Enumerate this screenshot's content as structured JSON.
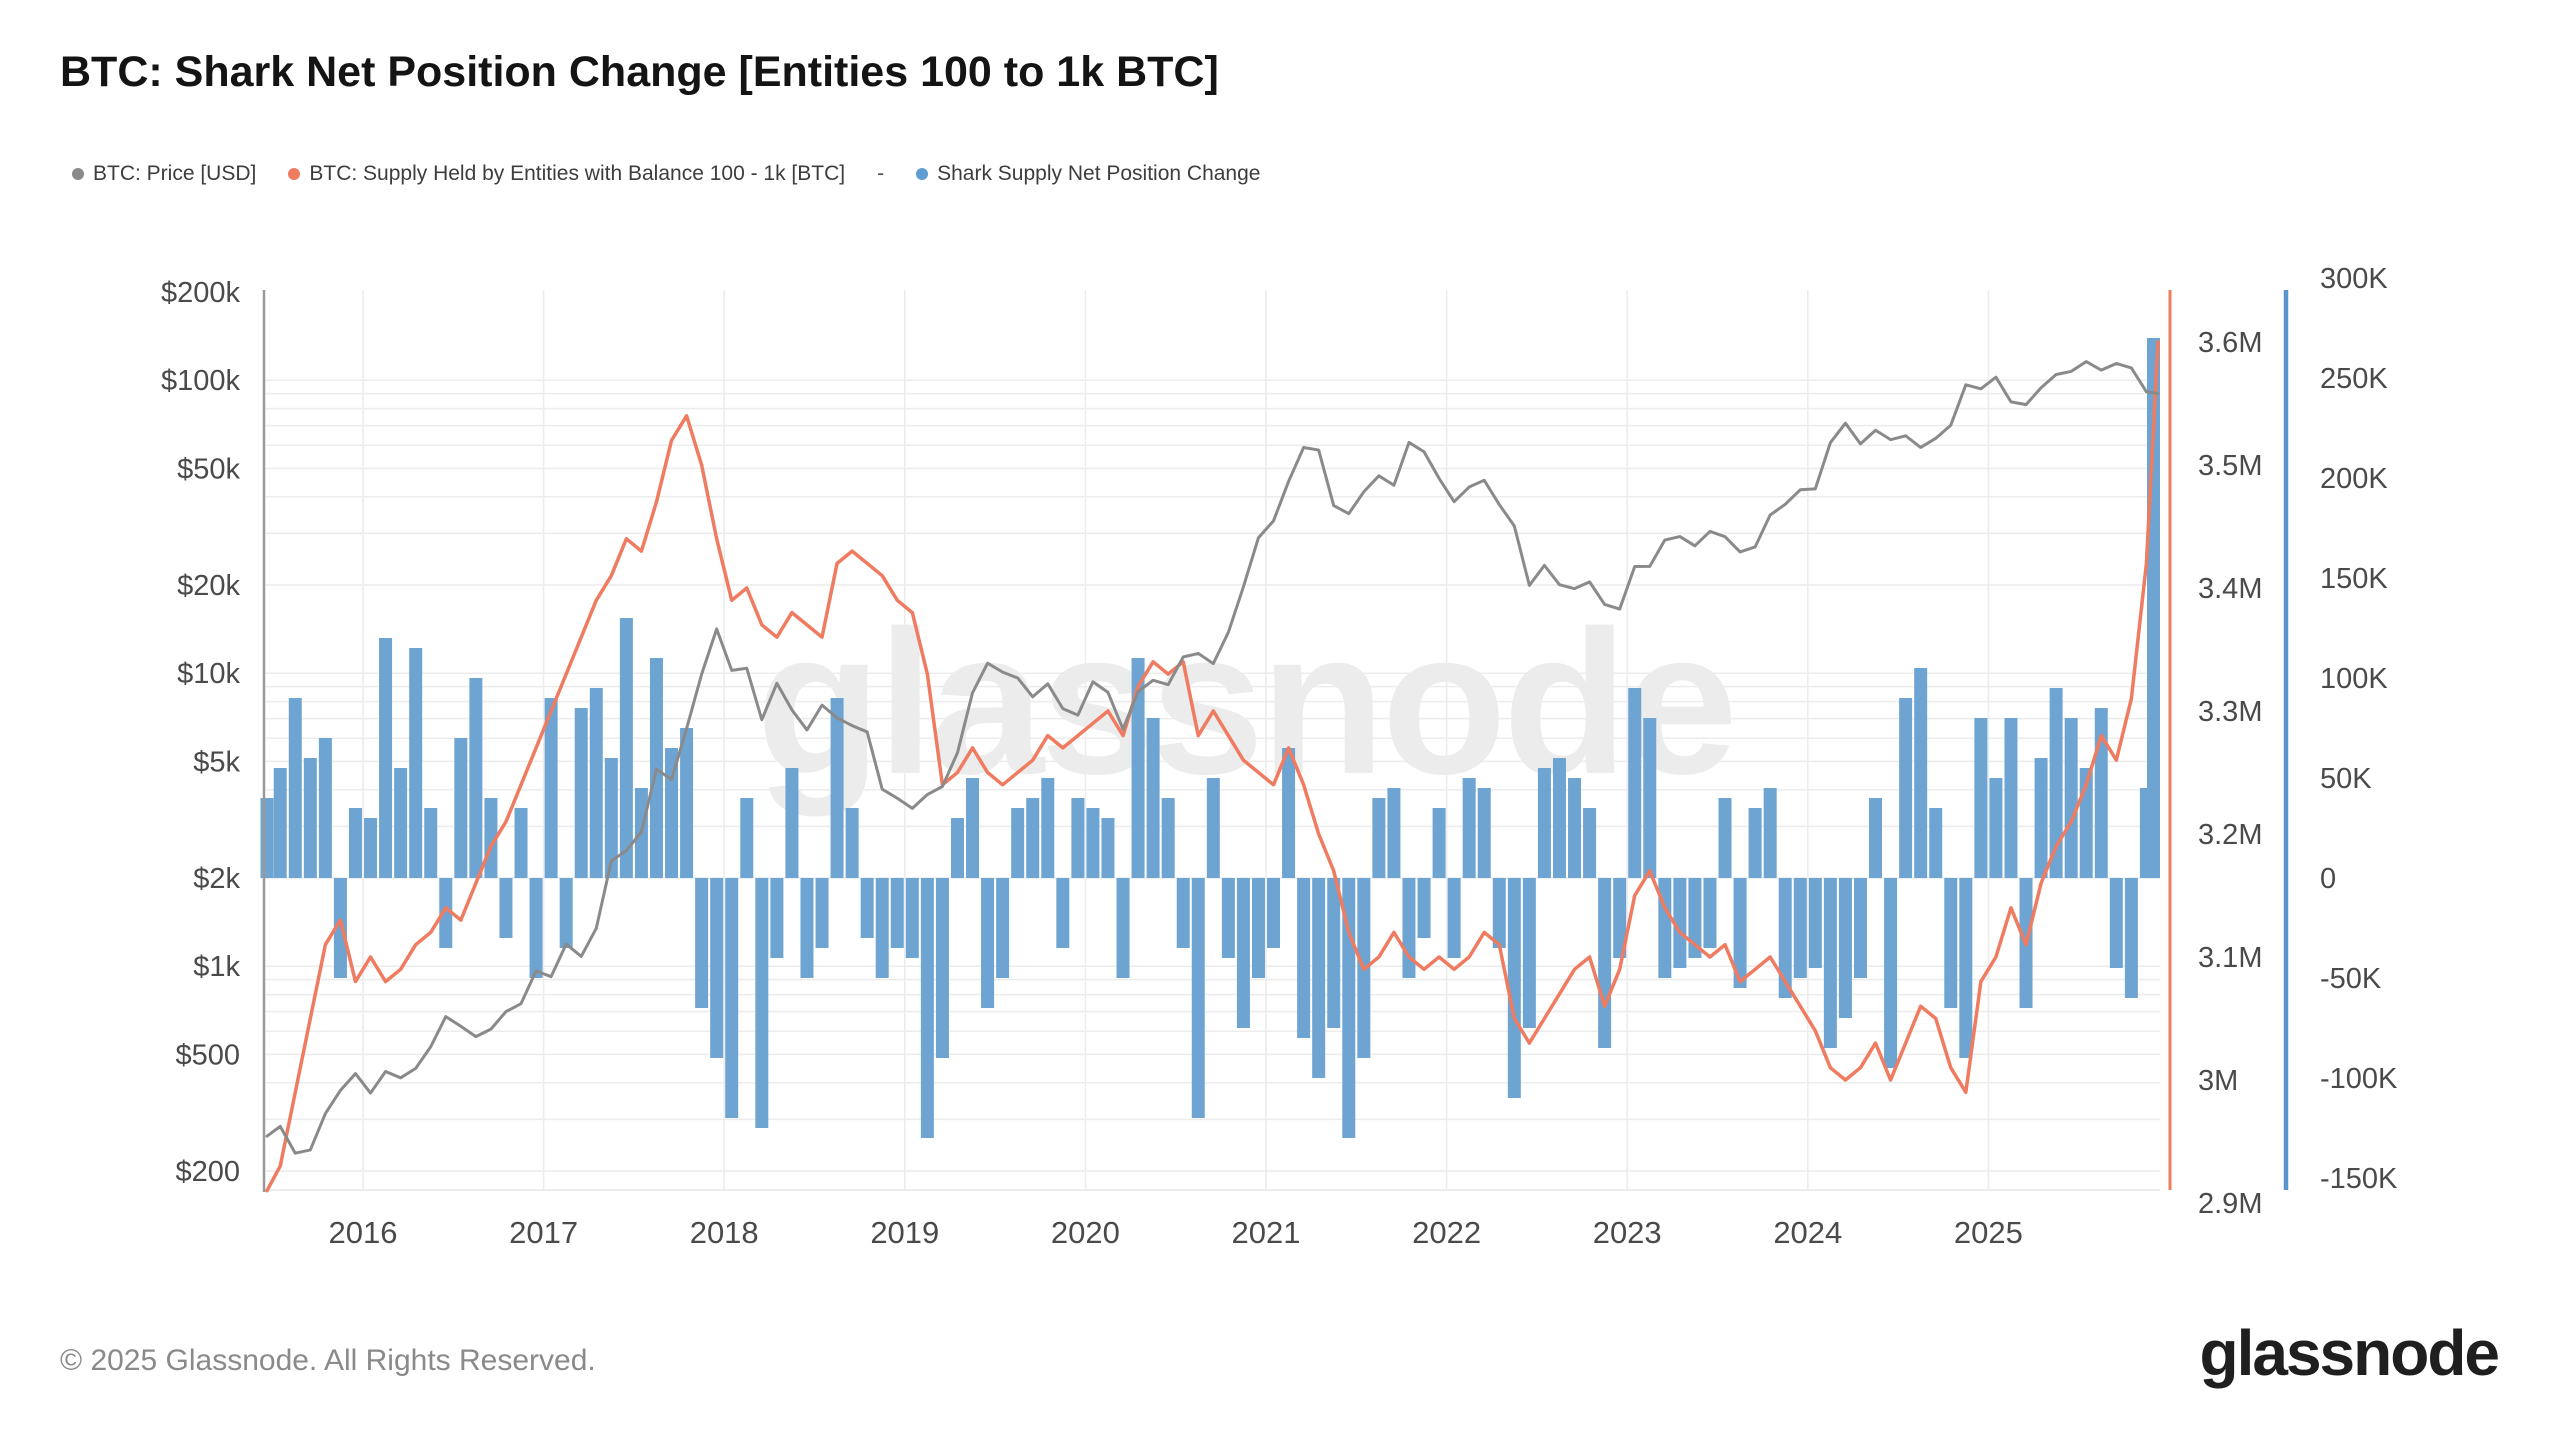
{
  "header": {
    "title": "BTC: Shark Net Position Change [Entities 100 to 1k BTC]"
  },
  "legend": {
    "items": [
      {
        "label": "BTC: Price [USD]",
        "color": "#8a8a8a"
      },
      {
        "label": "BTC: Supply Held by Entities with Balance 100 - 1k [BTC]",
        "color": "#ef7b60"
      },
      {
        "label": "Shark Supply Net Position Change",
        "color": "#5f9ed2"
      }
    ],
    "separator": "-"
  },
  "chart_data": {
    "type": "mixed",
    "title": "BTC: Shark Net Position Change [Entities 100 to 1k BTC]",
    "x_start": "2015-06",
    "x_step_months": 1,
    "n_points": 127,
    "x_axis": {
      "tick_labels": [
        "2016",
        "2017",
        "2018",
        "2019",
        "2020",
        "2021",
        "2022",
        "2023",
        "2024",
        "2025"
      ]
    },
    "series": [
      {
        "name": "BTC: Price [USD]",
        "type": "line",
        "axis": "price",
        "color": "#8a8a8a",
        "values": [
          263,
          284,
          230,
          236,
          314,
          377,
          430,
          369,
          437,
          416,
          448,
          531,
          673,
          624,
          575,
          610,
          700,
          745,
          964,
          921,
          1190,
          1080,
          1347,
          2287,
          2481,
          2875,
          4703,
          4338,
          6468,
          9916,
          14156,
          10221,
          10397,
          6938,
          9240,
          7494,
          6404,
          7780,
          7037,
          6625,
          6303,
          4017,
          3743,
          3457,
          3854,
          4105,
          5350,
          8574,
          10818,
          10085,
          9630,
          8308,
          9199,
          7569,
          7193,
          9350,
          8599,
          6438,
          8658,
          9461,
          9137,
          11356,
          11680,
          10784,
          13797,
          19713,
          28996,
          33114,
          45137,
          58918,
          57750,
          37332,
          35040,
          41626,
          47166,
          43790,
          61318,
          57005,
          46217,
          38483,
          43193,
          45538,
          37630,
          31792,
          19942,
          23336,
          20049,
          19431,
          20495,
          17168,
          16547,
          23139,
          23147,
          28478,
          29268,
          27219,
          30477,
          29230,
          25931,
          26967,
          34667,
          37712,
          42265,
          42580,
          61198,
          71333,
          60636,
          67491,
          62678,
          64619,
          58969,
          63329,
          70215,
          96449,
          93429,
          102400,
          84349,
          82548,
          94207,
          104600,
          107135,
          115758,
          108236,
          114056,
          110083,
          91300,
          90000
        ]
      },
      {
        "name": "BTC: Supply Held by Entities with Balance 100 - 1k [BTC]",
        "type": "line",
        "axis": "supply",
        "color": "#ef7b60",
        "values": [
          2.91,
          2.93,
          2.99,
          3.05,
          3.11,
          3.13,
          3.08,
          3.1,
          3.08,
          3.09,
          3.11,
          3.12,
          3.14,
          3.13,
          3.16,
          3.19,
          3.21,
          3.24,
          3.27,
          3.3,
          3.33,
          3.36,
          3.39,
          3.41,
          3.44,
          3.43,
          3.47,
          3.52,
          3.54,
          3.5,
          3.44,
          3.39,
          3.4,
          3.37,
          3.36,
          3.38,
          3.37,
          3.36,
          3.42,
          3.43,
          3.42,
          3.41,
          3.39,
          3.38,
          3.33,
          3.24,
          3.25,
          3.27,
          3.25,
          3.24,
          3.25,
          3.26,
          3.28,
          3.27,
          3.28,
          3.29,
          3.3,
          3.28,
          3.32,
          3.34,
          3.33,
          3.34,
          3.28,
          3.3,
          3.28,
          3.26,
          3.25,
          3.24,
          3.27,
          3.24,
          3.2,
          3.17,
          3.12,
          3.09,
          3.1,
          3.12,
          3.1,
          3.09,
          3.1,
          3.09,
          3.1,
          3.12,
          3.11,
          3.05,
          3.03,
          3.05,
          3.07,
          3.09,
          3.1,
          3.06,
          3.09,
          3.15,
          3.17,
          3.14,
          3.12,
          3.11,
          3.1,
          3.11,
          3.08,
          3.09,
          3.1,
          3.08,
          3.06,
          3.04,
          3.01,
          3.0,
          3.01,
          3.03,
          3.0,
          3.03,
          3.06,
          3.05,
          3.01,
          2.99,
          3.08,
          3.1,
          3.14,
          3.11,
          3.16,
          3.19,
          3.21,
          3.24,
          3.28,
          3.26,
          3.31,
          3.42,
          3.6
        ]
      },
      {
        "name": "Shark Supply Net Position Change",
        "type": "bar",
        "axis": "net",
        "color": "#6ea4d2",
        "values": [
          40,
          55,
          90,
          60,
          70,
          -50,
          35,
          30,
          120,
          55,
          115,
          35,
          -35,
          70,
          100,
          40,
          -30,
          35,
          -50,
          90,
          -35,
          85,
          95,
          60,
          130,
          45,
          110,
          65,
          75,
          -65,
          -90,
          -120,
          40,
          -125,
          -40,
          55,
          -50,
          -35,
          90,
          35,
          -30,
          -50,
          -35,
          -40,
          -130,
          -90,
          30,
          50,
          -65,
          -50,
          35,
          40,
          50,
          -35,
          40,
          35,
          30,
          -50,
          110,
          80,
          40,
          -35,
          -120,
          50,
          -40,
          -75,
          -50,
          -35,
          65,
          -80,
          -100,
          -75,
          -130,
          -90,
          40,
          45,
          -50,
          -30,
          35,
          -40,
          50,
          45,
          -35,
          -110,
          -75,
          55,
          60,
          50,
          35,
          -85,
          -40,
          95,
          80,
          -50,
          -45,
          -40,
          -35,
          40,
          -55,
          35,
          45,
          -60,
          -50,
          -45,
          -85,
          -70,
          -50,
          40,
          -95,
          90,
          105,
          35,
          -65,
          -90,
          80,
          50,
          80,
          -65,
          60,
          95,
          80,
          55,
          85,
          -45,
          -60,
          45,
          270
        ]
      }
    ],
    "axes": {
      "price": {
        "side": "left",
        "scale": "log",
        "unit": "USD",
        "tick_labels": [
          "$200k",
          "$100k",
          "$50k",
          "$20k",
          "$10k",
          "$5k",
          "$2k",
          "$1k",
          "$500",
          "$200"
        ],
        "tick_values": [
          200000,
          100000,
          50000,
          20000,
          10000,
          5000,
          2000,
          1000,
          500,
          200
        ],
        "range": [
          200,
          200000
        ],
        "axis_line_color": "#999999"
      },
      "supply": {
        "side": "right",
        "scale": "linear",
        "unit": "M BTC",
        "tick_labels": [
          "3.6M",
          "3.5M",
          "3.4M",
          "3.3M",
          "3.2M",
          "3.1M",
          "3M",
          "2.9M"
        ],
        "tick_values": [
          3.6,
          3.5,
          3.4,
          3.3,
          3.2,
          3.1,
          3.0,
          2.9
        ],
        "range": [
          2.905,
          3.645
        ],
        "axis_line_color": "#ef7b60"
      },
      "net": {
        "side": "right-outer",
        "scale": "linear",
        "unit": "K BTC",
        "tick_labels": [
          "300K",
          "250K",
          "200K",
          "150K",
          "100K",
          "50K",
          "0",
          "-50K",
          "-100K",
          "-150K"
        ],
        "tick_values": [
          300,
          250,
          200,
          150,
          100,
          50,
          0,
          -50,
          -100,
          -150
        ],
        "range": [
          -156,
          294
        ],
        "baseline": 0,
        "axis_line_color": "#5795cc"
      }
    },
    "grid": {
      "h_line_color": "#ececec",
      "v_line_color": "#ececec",
      "tick_text_color": "#4a4a4a"
    },
    "watermark": "glassnode"
  },
  "footer": {
    "copyright": "© 2025 Glassnode. All Rights Reserved.",
    "logo": "glassnode"
  }
}
